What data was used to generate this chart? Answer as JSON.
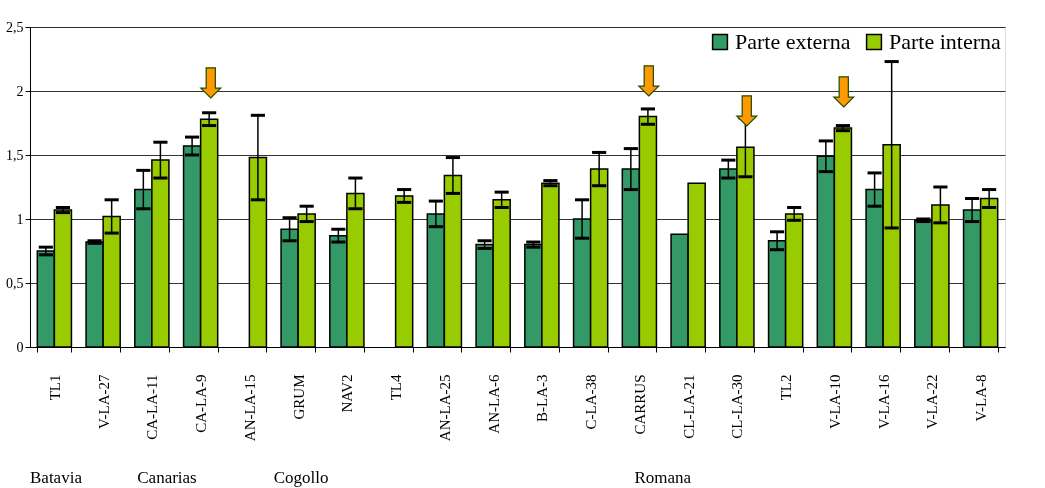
{
  "chart_data": {
    "type": "bar",
    "categories": [
      "TL1",
      "V-LA-27",
      "CA-LA-11",
      "CA-LA-9",
      "AN-LA-15",
      "GRUM",
      "NAV2",
      "TL4",
      "AN-LA-25",
      "AN-LA-6",
      "B-LA-3",
      "C-LA-38",
      "CARRUS",
      "CL-LA-21",
      "CL-LA-30",
      "TL2",
      "V-LA-10",
      "V-LA-16",
      "V-LA-22",
      "V-LA-8"
    ],
    "series": [
      {
        "name": "Parte externa",
        "color": "#339966",
        "values": [
          0.75,
          0.82,
          1.23,
          1.57,
          null,
          0.92,
          0.87,
          null,
          1.04,
          0.8,
          0.8,
          1.0,
          1.39,
          0.88,
          1.39,
          0.83,
          1.49,
          1.23,
          0.99,
          1.07
        ],
        "errors": [
          0.03,
          0.01,
          0.15,
          0.07,
          null,
          0.09,
          0.05,
          null,
          0.1,
          0.03,
          0.02,
          0.15,
          0.16,
          null,
          0.07,
          0.07,
          0.12,
          0.13,
          0.01,
          0.09
        ]
      },
      {
        "name": "Parte interna",
        "color": "#99cc00",
        "values": [
          1.07,
          1.02,
          1.46,
          1.78,
          1.48,
          1.04,
          1.2,
          1.18,
          1.34,
          1.15,
          1.28,
          1.39,
          1.8,
          1.28,
          1.56,
          1.04,
          1.71,
          1.58,
          1.11,
          1.16
        ],
        "errors": [
          0.02,
          0.13,
          0.14,
          0.05,
          0.33,
          0.06,
          0.12,
          0.05,
          0.14,
          0.06,
          0.02,
          0.13,
          0.06,
          null,
          0.23,
          0.05,
          0.02,
          0.65,
          0.14,
          0.07
        ]
      }
    ],
    "ylim": [
      0,
      2.5
    ],
    "yticks": [
      0,
      {
        "value": 0.5,
        "label": "0,5"
      },
      1,
      {
        "value": 1.5,
        "label": "1,5"
      },
      2,
      {
        "value": 2.5,
        "label": "2,5"
      }
    ],
    "grid": "y",
    "legend": "top right",
    "annotations": [
      {
        "text": "⬇",
        "x": "CA-LA-9",
        "y": 1.78
      },
      {
        "text": "⬇",
        "x": "CARRUS",
        "y": 1.8
      },
      {
        "text": "⬇",
        "x": "CL-LA-30",
        "y": 1.56
      },
      {
        "text": "⬇",
        "x": "V-LA-10",
        "y": 1.71
      },
      "Batavia",
      "Canarias",
      "Cogollo",
      "Romana"
    ]
  }
}
